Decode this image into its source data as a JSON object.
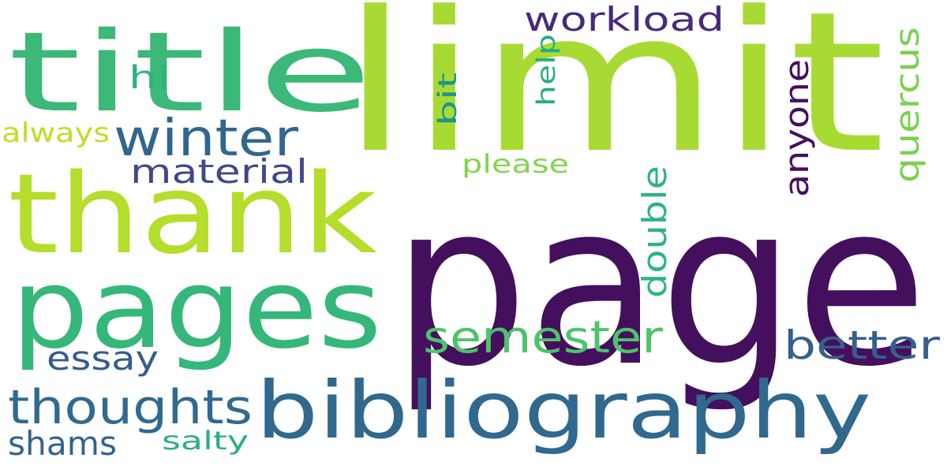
{
  "words": [
    {
      "text": "page",
      "color": "#440f5d",
      "orientation": "horizontal"
    },
    {
      "text": "limit",
      "color": "#a7db33",
      "orientation": "horizontal"
    },
    {
      "text": "thank",
      "color": "#b5dd2b",
      "orientation": "horizontal"
    },
    {
      "text": "title",
      "color": "#3cb878",
      "orientation": "horizontal"
    },
    {
      "text": "pages",
      "color": "#35b779",
      "orientation": "horizontal"
    },
    {
      "text": "bibliography",
      "color": "#30688e",
      "orientation": "horizontal"
    },
    {
      "text": "winter",
      "color": "#31668e",
      "orientation": "horizontal"
    },
    {
      "text": "semester",
      "color": "#4ec36b",
      "orientation": "horizontal"
    },
    {
      "text": "thoughts",
      "color": "#306a8e",
      "orientation": "horizontal"
    },
    {
      "text": "better",
      "color": "#355f8d",
      "orientation": "horizontal"
    },
    {
      "text": "material",
      "color": "#3f4889",
      "orientation": "horizontal"
    },
    {
      "text": "workload",
      "color": "#472a7a",
      "orientation": "horizontal"
    },
    {
      "text": "essay",
      "color": "#365c8d",
      "orientation": "horizontal"
    },
    {
      "text": "shams",
      "color": "#33638d",
      "orientation": "horizontal"
    },
    {
      "text": "anyone",
      "color": "#440f5d",
      "orientation": "vertical"
    },
    {
      "text": "double",
      "color": "#2fb47c",
      "orientation": "vertical"
    },
    {
      "text": "quercus",
      "color": "#7ad151",
      "orientation": "vertical"
    },
    {
      "text": "hi",
      "color": "#2db27d",
      "orientation": "horizontal"
    },
    {
      "text": "always",
      "color": "#bddf26",
      "orientation": "horizontal"
    },
    {
      "text": "please",
      "color": "#84d44b",
      "orientation": "horizontal"
    },
    {
      "text": "salty",
      "color": "#29af7f",
      "orientation": "horizontal"
    },
    {
      "text": "help",
      "color": "#26ad81",
      "orientation": "vertical"
    },
    {
      "text": "bit",
      "color": "#1f948c",
      "orientation": "vertical"
    }
  ]
}
